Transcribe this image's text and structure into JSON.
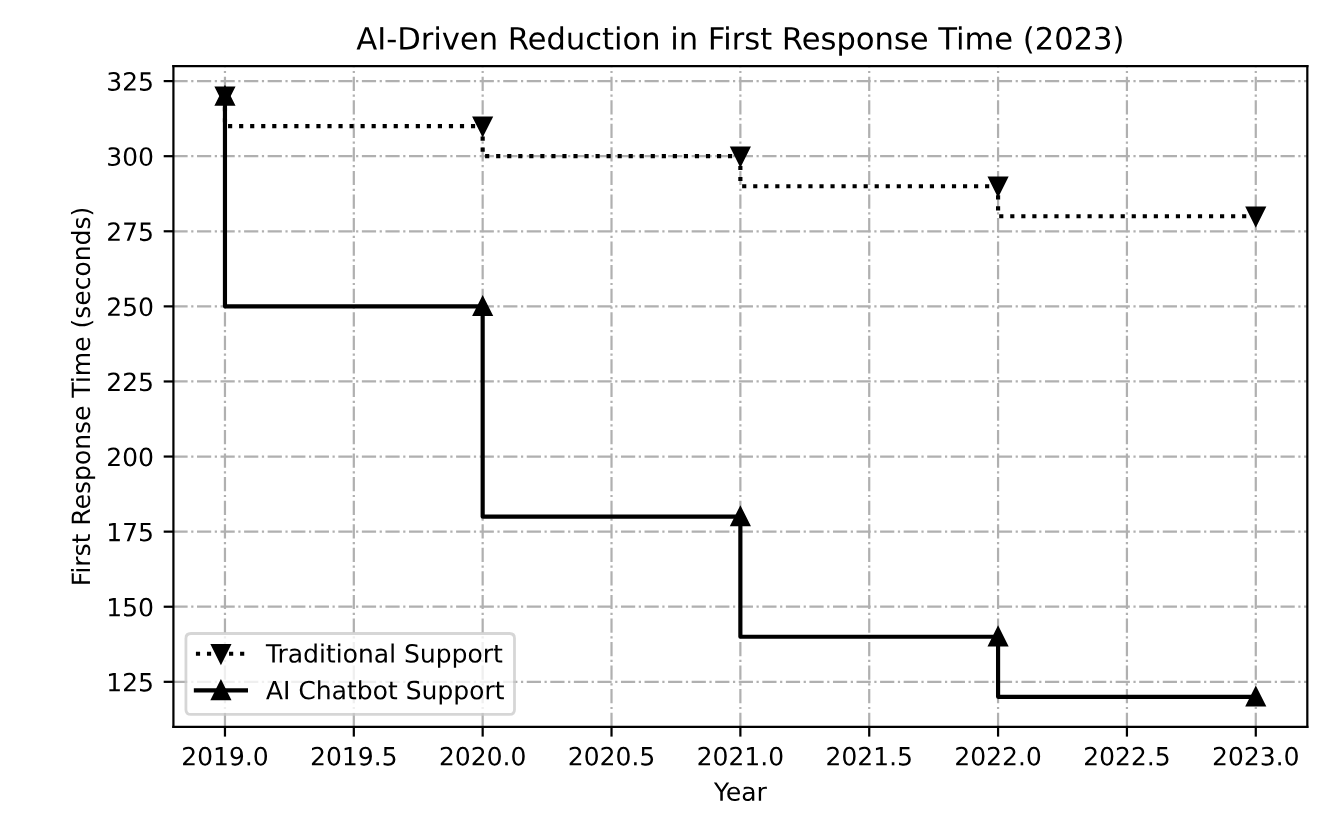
{
  "chart_data": {
    "type": "step",
    "title": "AI-Driven Reduction in First Response Time (2023)",
    "xlabel": "Year",
    "ylabel": "First Response Time (seconds)",
    "x": [
      2019,
      2020,
      2021,
      2022,
      2023
    ],
    "series": [
      {
        "name": "Traditional Support",
        "color": "#000000",
        "values": [
          320,
          310,
          300,
          290,
          280
        ],
        "marker": "triangle_down",
        "line_style": "dotted"
      },
      {
        "name": "AI Chatbot Support",
        "color": "#000000",
        "values": [
          320,
          250,
          180,
          140,
          120
        ],
        "marker": "triangle",
        "line_style": "solid"
      }
    ],
    "xlim": [
      2018.8,
      2023.2
    ],
    "xticks": [
      {
        "value": 2019,
        "label": "2019.0"
      },
      {
        "value": 2019.5,
        "label": "2019.5"
      },
      {
        "value": 2020,
        "label": "2020.0"
      },
      {
        "value": 2020.5,
        "label": "2020.5"
      },
      {
        "value": 2021,
        "label": "2021.0"
      },
      {
        "value": 2021.5,
        "label": "2021.5"
      },
      {
        "value": 2022,
        "label": "2022.0"
      },
      {
        "value": 2022.5,
        "label": "2022.5"
      },
      {
        "value": 2023,
        "label": "2023.0"
      }
    ],
    "ylim": [
      110,
      330
    ],
    "yticks": [
      125,
      150,
      175,
      200,
      225,
      250,
      275,
      300,
      325
    ],
    "grid": true,
    "legend": "bottom left"
  }
}
